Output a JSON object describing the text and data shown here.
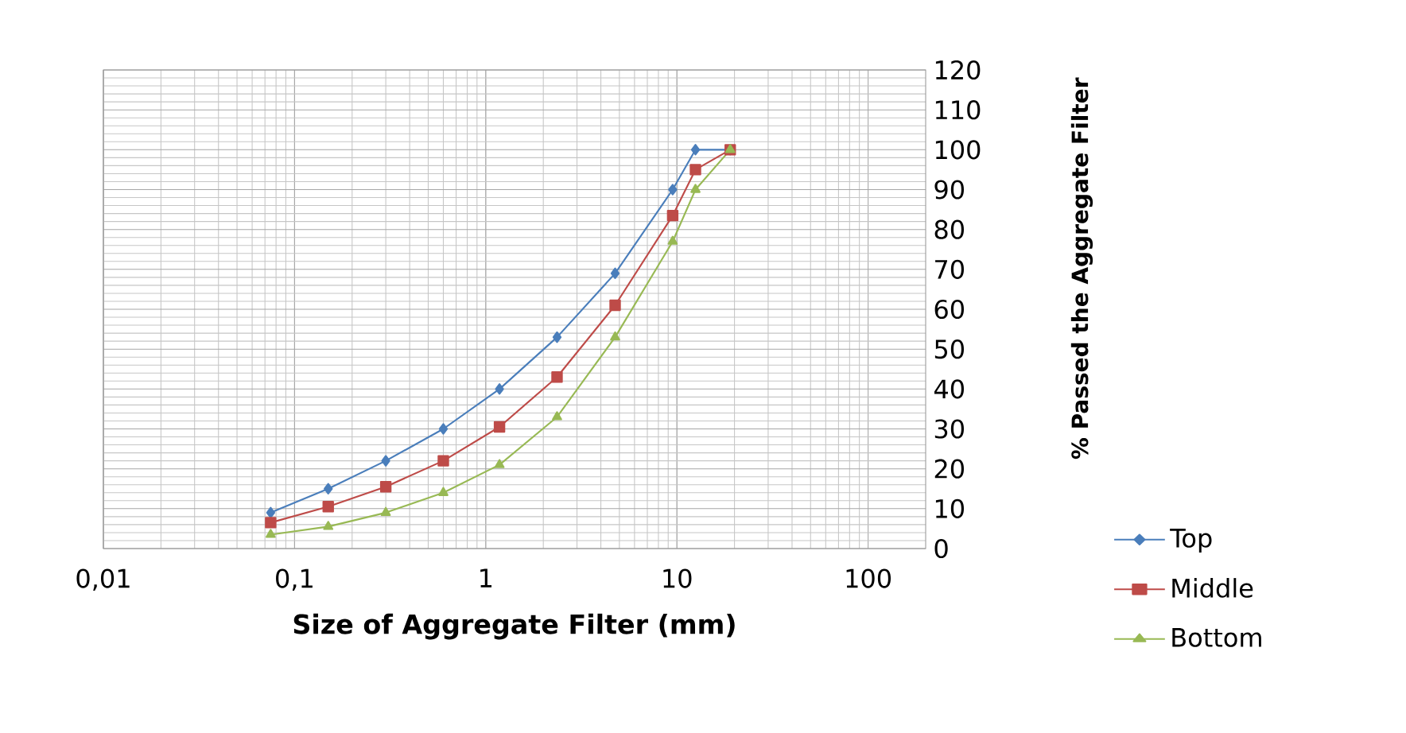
{
  "chart_data": {
    "type": "line",
    "xlabel": "Size of Aggregate Filter (mm)",
    "ylabel": "% Passed the Aggregate Filter",
    "log": "x",
    "grid": true,
    "legend": "bottom right",
    "xlim": [
      0.01,
      200
    ],
    "ylim": [
      0,
      120
    ],
    "xticks": [
      {
        "value": 0.01,
        "label": "0,01"
      },
      {
        "value": 0.1,
        "label": "0,1"
      },
      1,
      10,
      100
    ],
    "yticks": [
      0,
      10,
      20,
      30,
      40,
      50,
      60,
      70,
      80,
      90,
      100,
      110,
      120
    ],
    "series": [
      {
        "name": "Top",
        "color": "#4a7ebb",
        "marker": "diamond",
        "x": [
          0.075,
          0.15,
          0.3,
          0.6,
          1.18,
          2.36,
          4.75,
          9.5,
          12.5,
          19
        ],
        "values": [
          9,
          15,
          22,
          30,
          40,
          53,
          69,
          90,
          100,
          100
        ]
      },
      {
        "name": "Middle",
        "color": "#be4b48",
        "marker": "square",
        "x": [
          0.075,
          0.15,
          0.3,
          0.6,
          1.18,
          2.36,
          4.75,
          9.5,
          12.5,
          19
        ],
        "values": [
          6.5,
          10.5,
          15.5,
          22,
          30.5,
          43,
          61,
          83.5,
          95,
          100
        ]
      },
      {
        "name": "Bottom",
        "color": "#98b954",
        "marker": "triangle",
        "x": [
          0.075,
          0.15,
          0.3,
          0.6,
          1.18,
          2.36,
          4.75,
          9.5,
          12.5,
          19
        ],
        "values": [
          3.5,
          5.5,
          9,
          14,
          21,
          33,
          53,
          77,
          90,
          100
        ]
      }
    ]
  }
}
